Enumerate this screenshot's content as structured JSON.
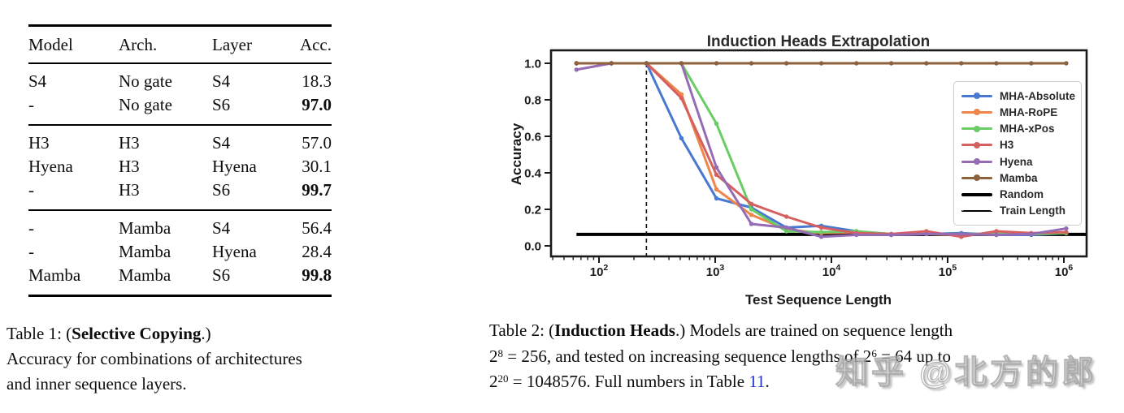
{
  "table1": {
    "headers": {
      "model": "Model",
      "arch": "Arch.",
      "layer": "Layer",
      "acc": "Acc."
    },
    "rows": [
      {
        "model": "S4",
        "arch": "No gate",
        "layer": "S4",
        "acc": "18.3"
      },
      {
        "model": "-",
        "arch": "No gate",
        "layer": "S6",
        "acc": "97.0"
      },
      {
        "model": "H3",
        "arch": "H3",
        "layer": "S4",
        "acc": "57.0"
      },
      {
        "model": "Hyena",
        "arch": "H3",
        "layer": "Hyena",
        "acc": "30.1"
      },
      {
        "model": "-",
        "arch": "H3",
        "layer": "S6",
        "acc": "99.7"
      },
      {
        "model": "-",
        "arch": "Mamba",
        "layer": "S4",
        "acc": "56.4"
      },
      {
        "model": "-",
        "arch": "Mamba",
        "layer": "Hyena",
        "acc": "28.4"
      },
      {
        "model": "Mamba",
        "arch": "Mamba",
        "layer": "S6",
        "acc": "99.8"
      }
    ],
    "caption": {
      "line1_pre": "Table 1: (",
      "line1_bold": "Selective Copying",
      "line1_post": ".)",
      "line2": "Accuracy for combinations of architectures",
      "line3": "and inner sequence layers."
    }
  },
  "chart_data": {
    "type": "line",
    "title": "Induction Heads Extrapolation",
    "xlabel": "Test Sequence Length",
    "ylabel": "Accuracy",
    "xscale": "log",
    "xlim": [
      38,
      1570000
    ],
    "ylim": [
      -0.06,
      1.07
    ],
    "grid": false,
    "legend_position": "upper right",
    "x": [
      64,
      128,
      256,
      512,
      1024,
      2048,
      4096,
      8192,
      16384,
      32768,
      65536,
      131072,
      262144,
      524288,
      1048576
    ],
    "xticks": [
      {
        "value": 100,
        "base": "10",
        "exp": "2"
      },
      {
        "value": 1000,
        "base": "10",
        "exp": "3"
      },
      {
        "value": 10000,
        "base": "10",
        "exp": "4"
      },
      {
        "value": 100000,
        "base": "10",
        "exp": "5"
      },
      {
        "value": 1000000,
        "base": "10",
        "exp": "6"
      }
    ],
    "yticks": [
      {
        "value": 0.0,
        "label": "0.0"
      },
      {
        "value": 0.2,
        "label": "0.2"
      },
      {
        "value": 0.4,
        "label": "0.4"
      },
      {
        "value": 0.6,
        "label": "0.6"
      },
      {
        "value": 0.8,
        "label": "0.8"
      },
      {
        "value": 1.0,
        "label": "1.0"
      }
    ],
    "series": [
      {
        "name": "MHA-Absolute",
        "color": "#4878D0",
        "values": [
          1.0,
          1.0,
          1.0,
          0.59,
          0.26,
          0.21,
          0.1,
          0.11,
          0.08,
          0.06,
          0.065,
          0.07,
          0.06,
          0.06,
          0.07
        ]
      },
      {
        "name": "MHA-RoPE",
        "color": "#EE854A",
        "values": [
          1.0,
          1.0,
          1.0,
          0.83,
          0.31,
          0.17,
          0.09,
          0.07,
          0.075,
          0.065,
          0.065,
          0.06,
          0.065,
          0.065,
          0.07
        ]
      },
      {
        "name": "MHA-xPos",
        "color": "#6ACC64",
        "values": [
          1.0,
          1.0,
          1.0,
          1.0,
          0.67,
          0.2,
          0.08,
          0.075,
          0.08,
          0.065,
          0.065,
          0.065,
          0.065,
          0.065,
          0.07
        ]
      },
      {
        "name": "H3",
        "color": "#D65F5F",
        "values": [
          1.0,
          1.0,
          1.0,
          0.81,
          0.39,
          0.23,
          0.16,
          0.1,
          0.07,
          0.065,
          0.08,
          0.05,
          0.08,
          0.07,
          0.075
        ]
      },
      {
        "name": "Hyena",
        "color": "#956CB4",
        "values": [
          0.965,
          1.0,
          1.0,
          1.0,
          0.43,
          0.12,
          0.1,
          0.05,
          0.06,
          0.06,
          0.065,
          0.065,
          0.06,
          0.065,
          0.095
        ]
      },
      {
        "name": "Mamba",
        "color": "#8C613C",
        "values": [
          1.0,
          1.0,
          1.0,
          1.0,
          1.0,
          1.0,
          1.0,
          1.0,
          1.0,
          1.0,
          1.0,
          1.0,
          1.0,
          1.0,
          1.0
        ]
      }
    ],
    "baseline": {
      "name": "Random",
      "color": "#000000",
      "value": 0.063
    },
    "train_length": {
      "name": "Train Length",
      "value": 256
    },
    "legend": [
      {
        "label": "MHA-Absolute",
        "color": "#4878D0",
        "style": "line-marker"
      },
      {
        "label": "MHA-RoPE",
        "color": "#EE854A",
        "style": "line-marker"
      },
      {
        "label": "MHA-xPos",
        "color": "#6ACC64",
        "style": "line-marker"
      },
      {
        "label": "H3",
        "color": "#D65F5F",
        "style": "line-marker"
      },
      {
        "label": "Hyena",
        "color": "#956CB4",
        "style": "line-marker"
      },
      {
        "label": "Mamba",
        "color": "#8C613C",
        "style": "line-marker"
      },
      {
        "label": "Random",
        "color": "#000000",
        "style": "thick-line"
      },
      {
        "label": "Train Length",
        "color": "#000000",
        "style": "dashed-line"
      }
    ]
  },
  "caption2": {
    "line1_pre": "Table 2: (",
    "line1_bold": "Induction Heads",
    "line1_post": ".)  Models are trained on sequence length",
    "line2_base1": "2",
    "line2_sup1": "8",
    "line2_mid": " = 256, and tested on increasing sequence lengths of 2",
    "line2_sup2": "6",
    "line2_end": " = 64 up to",
    "line3_base": "2",
    "line3_sup": "20",
    "line3_mid": " = 1048576. Full numbers in Table ",
    "line3_link": "11",
    "line3_dot": ".",
    "link_color": "#2433cc"
  },
  "watermark": "知乎 @北方的郎"
}
